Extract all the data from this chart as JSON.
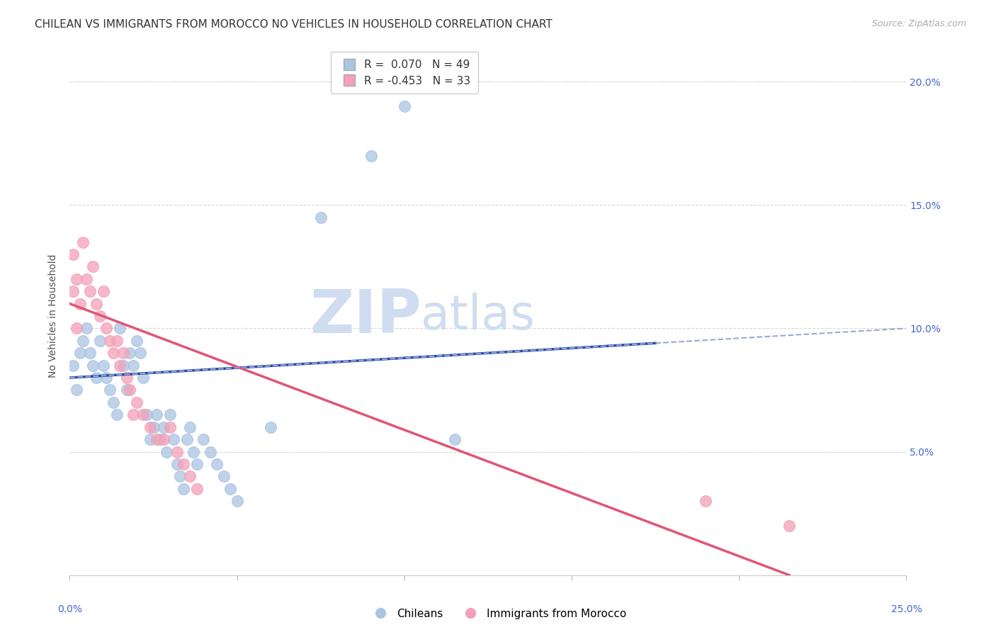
{
  "title": "CHILEAN VS IMMIGRANTS FROM MOROCCO NO VEHICLES IN HOUSEHOLD CORRELATION CHART",
  "source": "Source: ZipAtlas.com",
  "ylabel": "No Vehicles in Household",
  "x_min": 0.0,
  "x_max": 0.25,
  "y_min": 0.0,
  "y_max": 0.21,
  "y_ticks": [
    0.05,
    0.1,
    0.15,
    0.2
  ],
  "y_tick_labels": [
    "5.0%",
    "10.0%",
    "15.0%",
    "20.0%"
  ],
  "blue_color": "#aac4e4",
  "pink_color": "#f4a0b8",
  "line_blue": "#2244aa",
  "line_pink": "#e05575",
  "dashed_line_color": "#99aacc",
  "watermark_text": "ZIPatlas",
  "watermark_color": "#d0ddf0",
  "chileans_x": [
    0.001,
    0.002,
    0.003,
    0.004,
    0.005,
    0.006,
    0.007,
    0.008,
    0.009,
    0.01,
    0.011,
    0.012,
    0.013,
    0.014,
    0.015,
    0.016,
    0.017,
    0.018,
    0.019,
    0.02,
    0.021,
    0.022,
    0.023,
    0.024,
    0.025,
    0.026,
    0.027,
    0.028,
    0.029,
    0.03,
    0.031,
    0.032,
    0.033,
    0.034,
    0.035,
    0.036,
    0.037,
    0.038,
    0.04,
    0.042,
    0.044,
    0.046,
    0.048,
    0.05,
    0.06,
    0.075,
    0.09,
    0.1,
    0.115
  ],
  "chileans_y": [
    0.085,
    0.075,
    0.09,
    0.095,
    0.1,
    0.09,
    0.085,
    0.08,
    0.095,
    0.085,
    0.08,
    0.075,
    0.07,
    0.065,
    0.1,
    0.085,
    0.075,
    0.09,
    0.085,
    0.095,
    0.09,
    0.08,
    0.065,
    0.055,
    0.06,
    0.065,
    0.055,
    0.06,
    0.05,
    0.065,
    0.055,
    0.045,
    0.04,
    0.035,
    0.055,
    0.06,
    0.05,
    0.045,
    0.055,
    0.05,
    0.045,
    0.04,
    0.035,
    0.03,
    0.06,
    0.145,
    0.17,
    0.19,
    0.055
  ],
  "morocco_x": [
    0.001,
    0.001,
    0.002,
    0.002,
    0.003,
    0.004,
    0.005,
    0.006,
    0.007,
    0.008,
    0.009,
    0.01,
    0.011,
    0.012,
    0.013,
    0.014,
    0.015,
    0.016,
    0.017,
    0.018,
    0.019,
    0.02,
    0.022,
    0.024,
    0.026,
    0.028,
    0.03,
    0.032,
    0.034,
    0.036,
    0.038,
    0.19,
    0.215
  ],
  "morocco_y": [
    0.115,
    0.13,
    0.1,
    0.12,
    0.11,
    0.135,
    0.12,
    0.115,
    0.125,
    0.11,
    0.105,
    0.115,
    0.1,
    0.095,
    0.09,
    0.095,
    0.085,
    0.09,
    0.08,
    0.075,
    0.065,
    0.07,
    0.065,
    0.06,
    0.055,
    0.055,
    0.06,
    0.05,
    0.045,
    0.04,
    0.035,
    0.03,
    0.02
  ],
  "blue_trend_x": [
    0.0,
    0.175
  ],
  "blue_trend_y": [
    0.08,
    0.094
  ],
  "pink_trend_x": [
    0.0,
    0.215
  ],
  "pink_trend_y": [
    0.11,
    0.0
  ],
  "dashed_trend_x": [
    0.0,
    0.25
  ],
  "dashed_trend_y": [
    0.08,
    0.1
  ],
  "title_fontsize": 11,
  "source_fontsize": 9,
  "label_fontsize": 10,
  "tick_fontsize": 10,
  "legend_fontsize": 11,
  "background_color": "#ffffff",
  "grid_color": "#cccccc",
  "tick_color": "#4466cc",
  "R_blue": "0.070",
  "N_blue": "49",
  "R_pink": "-0.453",
  "N_pink": "33"
}
